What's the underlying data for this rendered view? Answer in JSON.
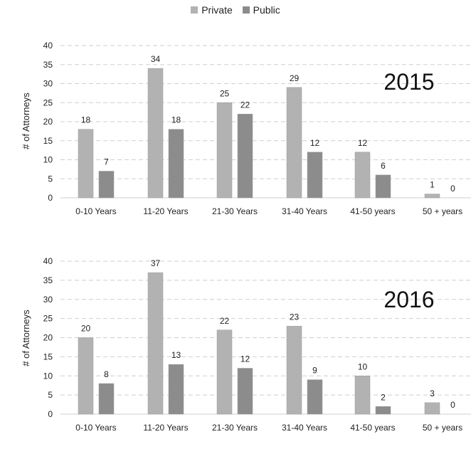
{
  "legend": {
    "private_label": "Private",
    "public_label": "Public",
    "private_color": "#b2b2b2",
    "public_color": "#8c8c8c"
  },
  "chart_data": [
    {
      "type": "bar",
      "title": "2015",
      "ylabel": "# of Attorneys",
      "ylim": [
        0,
        40
      ],
      "yticks": [
        0,
        5,
        10,
        15,
        20,
        25,
        30,
        35,
        40
      ],
      "categories": [
        "0-10 Years",
        "11-20 Years",
        "21-30 Years",
        "31-40 Years",
        "41-50 years",
        "50 + years"
      ],
      "series": [
        {
          "name": "Private",
          "values": [
            18,
            34,
            25,
            29,
            12,
            1
          ]
        },
        {
          "name": "Public",
          "values": [
            7,
            18,
            22,
            12,
            6,
            0
          ]
        }
      ],
      "legend_position": "top-center"
    },
    {
      "type": "bar",
      "title": "2016",
      "ylabel": "# of Attorneys",
      "ylim": [
        0,
        40
      ],
      "yticks": [
        0,
        5,
        10,
        15,
        20,
        25,
        30,
        35,
        40
      ],
      "categories": [
        "0-10 Years",
        "11-20 Years",
        "21-30 Years",
        "31-40 Years",
        "41-50 years",
        "50 + years"
      ],
      "series": [
        {
          "name": "Private",
          "values": [
            20,
            37,
            22,
            23,
            10,
            3
          ]
        },
        {
          "name": "Public",
          "values": [
            8,
            13,
            12,
            9,
            2,
            0
          ]
        }
      ],
      "legend_position": "top-center"
    }
  ]
}
